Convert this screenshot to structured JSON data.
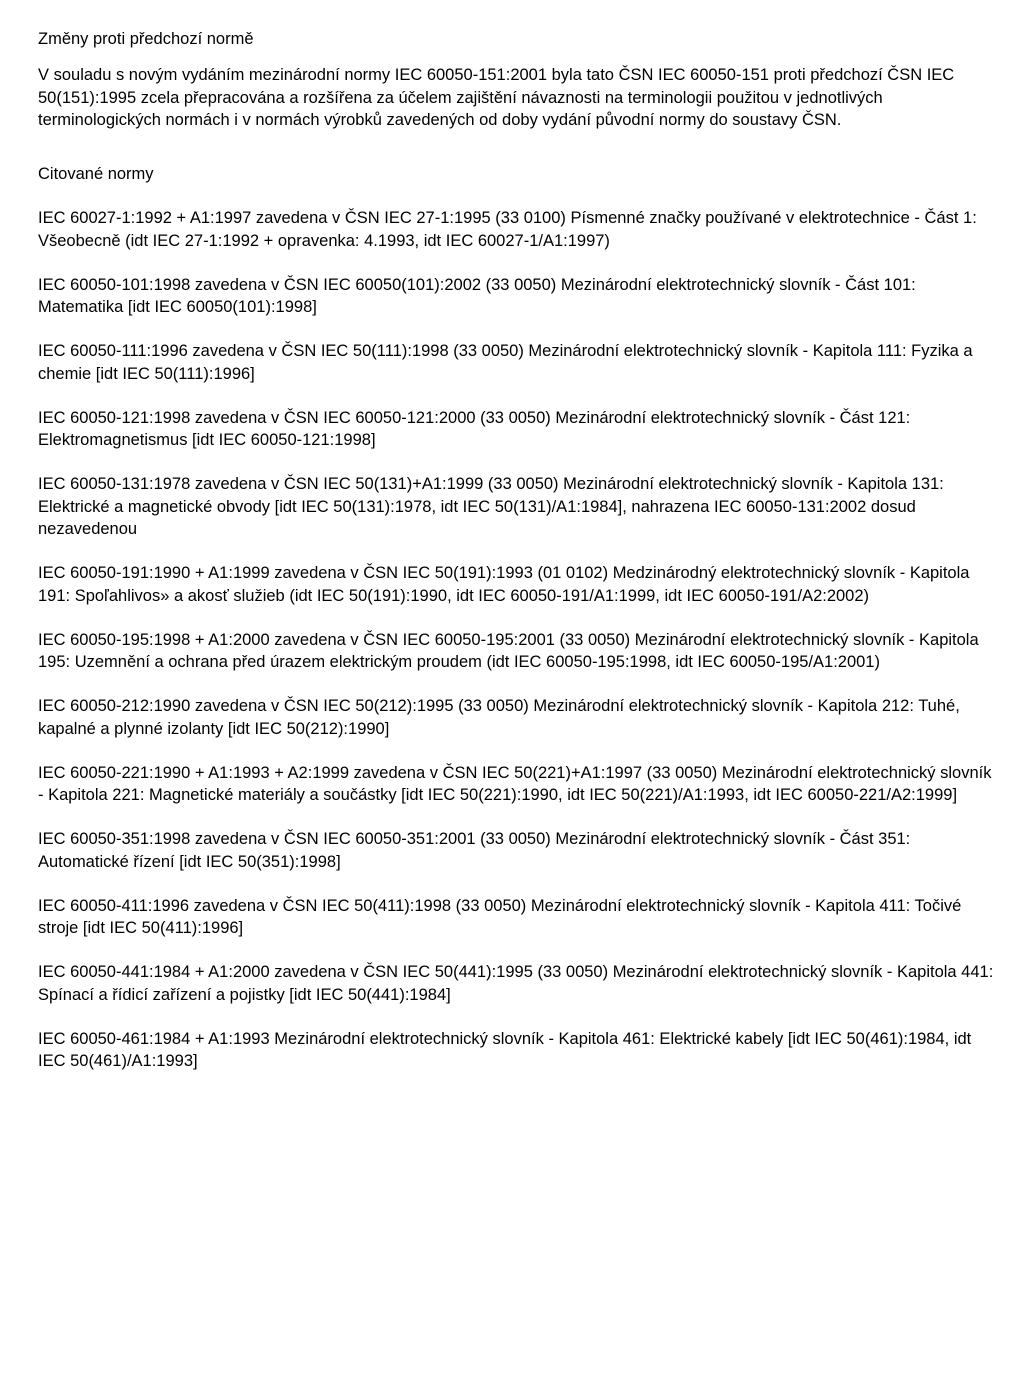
{
  "heading1": "Změny proti předchozí normě",
  "intro": "V souladu s novým vydáním mezinárodní normy IEC 60050-151:2001 byla tato ČSN IEC 60050-151 proti předchozí ČSN IEC 50(151):1995 zcela přepracována a rozšířena za účelem zajištění návaznosti na terminologii použitou v jednotlivých terminologických normách i v normách výrobků zavedených od doby vydání původní normy do soustavy ČSN.",
  "heading2": "Citované normy",
  "refs": [
    "IEC 60027-1:1992 + A1:1997 zavedena v ČSN IEC 27-1:1995 (33 0100) Písmenné značky používané v elektrotechnice - Část 1: Všeobecně (idt IEC 27-1:1992 + opravenka: 4.1993, idt IEC 60027-1/A1:1997)",
    "IEC 60050-101:1998 zavedena v ČSN IEC 60050(101):2002 (33 0050) Mezinárodní elektrotechnický slovník - Část 101: Matematika [idt IEC 60050(101):1998]",
    "IEC 60050-111:1996 zavedena v ČSN IEC 50(111):1998 (33 0050) Mezinárodní elektrotechnický slovník - Kapitola 111: Fyzika a chemie [idt IEC 50(111):1996]",
    "IEC 60050-121:1998 zavedena v ČSN IEC 60050-121:2000 (33 0050) Mezinárodní elektrotechnický slovník - Část 121: Elektromagnetismus [idt IEC 60050-121:1998]",
    "IEC 60050-131:1978 zavedena v ČSN IEC 50(131)+A1:1999 (33 0050) Mezinárodní elektrotechnický slovník - Kapitola 131: Elektrické a magnetické obvody [idt IEC 50(131):1978, idt IEC 50(131)/A1:1984], nahrazena IEC 60050-131:2002 dosud nezavedenou",
    "IEC 60050-191:1990 + A1:1999 zavedena v ČSN IEC 50(191):1993 (01 0102) Medzinárodný elektrotechnický slovník - Kapitola 191: Spoľahlivos» a akosť služieb (idt IEC 50(191):1990, idt IEC 60050-191/A1:1999, idt IEC 60050-191/A2:2002)",
    "IEC 60050-195:1998 + A1:2000 zavedena v ČSN IEC 60050-195:2001 (33 0050) Mezinárodní elektrotechnický slovník - Kapitola 195: Uzemnění a ochrana před úrazem elektrickým proudem (idt IEC 60050-195:1998, idt IEC 60050-195/A1:2001)",
    "IEC 60050-212:1990 zavedena v ČSN IEC 50(212):1995 (33 0050) Mezinárodní elektrotechnický slovník - Kapitola 212: Tuhé, kapalné a plynné izolanty [idt IEC 50(212):1990]",
    "IEC 60050-221:1990 + A1:1993 + A2:1999 zavedena v ČSN IEC 50(221)+A1:1997 (33 0050) Mezinárodní elektrotechnický slovník - Kapitola 221: Magnetické materiály a součástky [idt IEC 50(221):1990, idt IEC 50(221)/A1:1993, idt IEC 60050-221/A2:1999]",
    "IEC 60050-351:1998 zavedena v ČSN IEC 60050-351:2001 (33 0050) Mezinárodní elektrotechnický slovník - Část 351: Automatické řízení [idt IEC 50(351):1998]",
    "IEC 60050-411:1996 zavedena v ČSN IEC 50(411):1998 (33 0050) Mezinárodní elektrotechnický slovník - Kapitola 411: Točivé stroje [idt IEC 50(411):1996]",
    "IEC 60050-441:1984 + A1:2000 zavedena v ČSN IEC 50(441):1995 (33 0050) Mezinárodní elektrotechnický slovník - Kapitola 441: Spínací a řídicí zařízení a pojistky [idt IEC 50(441):1984]",
    "IEC 60050-461:1984 + A1:1993 Mezinárodní elektrotechnický slovník - Kapitola 461: Elektrické kabely [idt IEC 50(461):1984, idt IEC 50(461)/A1:1993]"
  ]
}
